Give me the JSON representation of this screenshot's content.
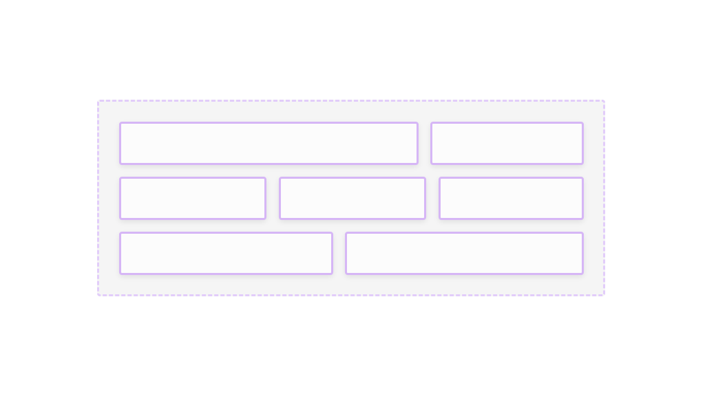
{
  "colors": {
    "container_border": "#e2cdfa",
    "container_background": "#f5f5f5",
    "box_border": "#d6b6f6",
    "box_background": "#fcfcfc"
  }
}
